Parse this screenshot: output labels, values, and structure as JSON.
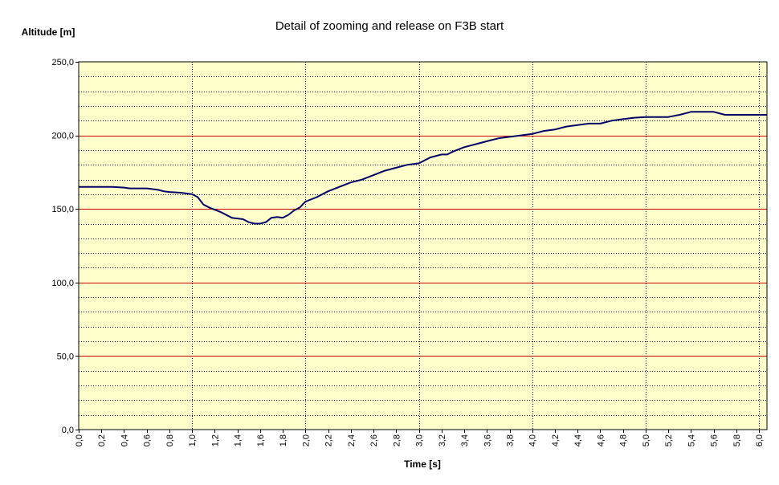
{
  "chart_data": {
    "type": "line",
    "title": "Detail of zooming and release on F3B start",
    "xlabel": "Time [s]",
    "ylabel": "Altitude [m]",
    "xlim": [
      0.0,
      6.07
    ],
    "ylim": [
      0,
      250
    ],
    "x_ticks": [
      "0,0",
      "0,2",
      "0,4",
      "0,6",
      "0,8",
      "1,0",
      "1,2",
      "1,4",
      "1,6",
      "1,8",
      "2,0",
      "2,2",
      "2,4",
      "2,6",
      "2,8",
      "3,0",
      "3,2",
      "3,4",
      "3,6",
      "3,8",
      "4,0",
      "4,2",
      "4,4",
      "4,6",
      "4,8",
      "5,0",
      "5,2",
      "5,4",
      "5,6",
      "5,8",
      "6,0"
    ],
    "x_tick_values": [
      0.0,
      0.2,
      0.4,
      0.6,
      0.8,
      1.0,
      1.2,
      1.4,
      1.6,
      1.8,
      2.0,
      2.2,
      2.4,
      2.6,
      2.8,
      3.0,
      3.2,
      3.4,
      3.6,
      3.8,
      4.0,
      4.2,
      4.4,
      4.6,
      4.8,
      5.0,
      5.2,
      5.4,
      5.6,
      5.8,
      6.0
    ],
    "y_ticks": [
      "0,0",
      "50,0",
      "100,0",
      "150,0",
      "200,0",
      "250,0"
    ],
    "y_tick_values": [
      0,
      50,
      100,
      150,
      200,
      250
    ],
    "y_minor_step": 10,
    "grid": true,
    "background_color": "#ffffcc",
    "major_grid_color": "#cc0000",
    "minor_grid_color": "#000000",
    "series": [
      {
        "color": "#000066",
        "x": [
          0.0,
          0.1,
          0.2,
          0.3,
          0.4,
          0.45,
          0.5,
          0.6,
          0.7,
          0.75,
          0.8,
          0.9,
          1.0,
          1.05,
          1.1,
          1.15,
          1.25,
          1.35,
          1.45,
          1.5,
          1.55,
          1.6,
          1.65,
          1.7,
          1.75,
          1.8,
          1.85,
          1.9,
          1.95,
          2.0,
          2.1,
          2.2,
          2.3,
          2.4,
          2.5,
          2.6,
          2.7,
          2.8,
          2.9,
          3.0,
          3.1,
          3.2,
          3.25,
          3.3,
          3.4,
          3.5,
          3.6,
          3.7,
          3.8,
          3.9,
          4.0,
          4.1,
          4.2,
          4.3,
          4.4,
          4.5,
          4.6,
          4.7,
          4.8,
          4.9,
          5.0,
          5.1,
          5.2,
          5.3,
          5.4,
          5.5,
          5.6,
          5.65,
          5.7,
          5.8,
          5.9,
          6.0,
          6.07
        ],
        "y": [
          165,
          165,
          165,
          165,
          164.5,
          164,
          164,
          164,
          163,
          162,
          161.5,
          161,
          160,
          158,
          153,
          151,
          148,
          144,
          143,
          141,
          140,
          140,
          141,
          144,
          144.5,
          144,
          146,
          149,
          151,
          155,
          158,
          162,
          165,
          168,
          170,
          173,
          176,
          178,
          180,
          181,
          185,
          187,
          187,
          189,
          192,
          194,
          196,
          198,
          199,
          200,
          201,
          203,
          204,
          206,
          207,
          208,
          208,
          210,
          211,
          212,
          212.5,
          212.5,
          212.5,
          214,
          216,
          216,
          216,
          215,
          214,
          214,
          214,
          214,
          214
        ]
      }
    ]
  }
}
